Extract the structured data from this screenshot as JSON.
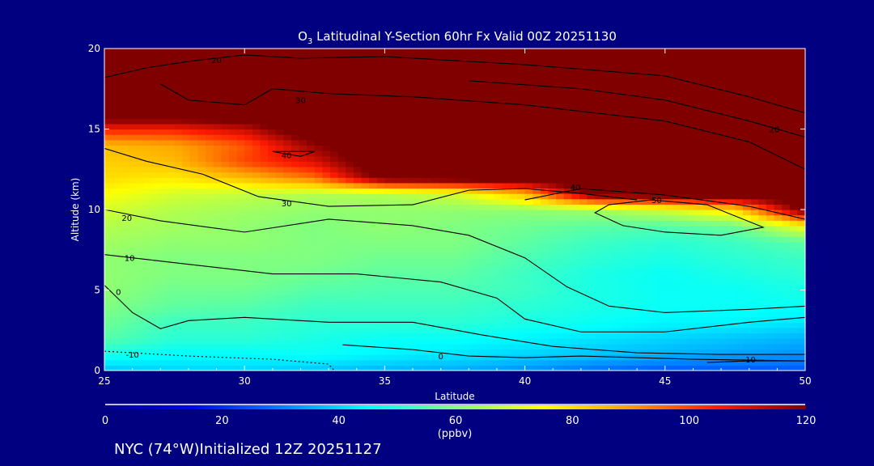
{
  "chart_data": {
    "type": "heatmap",
    "title_main": "O",
    "title_sub": "3",
    "title_rest": " Latitudinal Y-Section 60hr  Fx Valid 00Z 20251130",
    "xlabel": "Latitude",
    "ylabel": "Altitude (km)",
    "xlim": [
      25,
      50
    ],
    "ylim": [
      0,
      20
    ],
    "xticks": [
      "25",
      "30",
      "35",
      "40",
      "45",
      "50"
    ],
    "yticks": [
      "0",
      "5",
      "10",
      "15",
      "20"
    ],
    "colorbar": {
      "label": "(ppbv)",
      "range": [
        0,
        120
      ],
      "ticks": [
        "0",
        "20",
        "40",
        "60",
        "80",
        "100",
        "120"
      ],
      "stops": [
        [
          0,
          "#00008c"
        ],
        [
          15,
          "#0000ff"
        ],
        [
          30,
          "#0080ff"
        ],
        [
          45,
          "#00ffff"
        ],
        [
          60,
          "#80ff80"
        ],
        [
          75,
          "#ffff00"
        ],
        [
          90,
          "#ff9900"
        ],
        [
          105,
          "#ff1a00"
        ],
        [
          120,
          "#800000"
        ]
      ]
    },
    "footer": "NYC (74°W)Initialized 12Z 20251127",
    "grid_lat": [
      25,
      27.5,
      30,
      32.5,
      35,
      37.5,
      40,
      42.5,
      45,
      47.5,
      50
    ],
    "grid_alt": [
      0,
      1,
      2,
      3,
      4,
      5,
      6,
      7,
      8,
      9,
      10,
      11,
      12,
      13,
      14,
      15,
      16,
      17,
      18,
      19,
      20
    ],
    "values": [
      [
        38,
        40,
        40,
        38,
        36,
        35,
        32,
        28,
        25,
        25,
        25
      ],
      [
        48,
        45,
        45,
        46,
        44,
        42,
        40,
        38,
        36,
        34,
        32
      ],
      [
        55,
        50,
        50,
        48,
        46,
        46,
        44,
        42,
        40,
        38,
        36
      ],
      [
        58,
        52,
        52,
        50,
        50,
        50,
        48,
        46,
        44,
        44,
        42
      ],
      [
        60,
        56,
        55,
        52,
        52,
        52,
        50,
        48,
        46,
        46,
        46
      ],
      [
        62,
        58,
        58,
        55,
        54,
        54,
        52,
        48,
        46,
        46,
        48
      ],
      [
        62,
        60,
        60,
        58,
        56,
        56,
        52,
        48,
        46,
        48,
        50
      ],
      [
        62,
        60,
        60,
        60,
        58,
        58,
        54,
        50,
        48,
        50,
        52
      ],
      [
        64,
        62,
        62,
        60,
        60,
        60,
        56,
        52,
        50,
        52,
        56
      ],
      [
        66,
        64,
        62,
        60,
        62,
        60,
        58,
        56,
        55,
        58,
        75
      ],
      [
        70,
        66,
        64,
        62,
        62,
        62,
        62,
        64,
        70,
        80,
        125
      ],
      [
        75,
        70,
        68,
        66,
        66,
        70,
        85,
        125,
        128,
        130,
        130
      ],
      [
        80,
        78,
        85,
        95,
        125,
        128,
        130,
        130,
        130,
        130,
        130
      ],
      [
        82,
        85,
        100,
        110,
        130,
        130,
        130,
        130,
        130,
        130,
        130
      ],
      [
        85,
        88,
        98,
        118,
        130,
        130,
        130,
        130,
        130,
        130,
        130
      ],
      [
        105,
        105,
        112,
        130,
        130,
        130,
        130,
        130,
        130,
        130,
        130
      ],
      [
        130,
        130,
        130,
        130,
        130,
        130,
        130,
        130,
        130,
        130,
        130
      ],
      [
        130,
        130,
        130,
        130,
        130,
        130,
        130,
        130,
        130,
        130,
        130
      ],
      [
        130,
        130,
        130,
        130,
        130,
        130,
        130,
        130,
        130,
        130,
        130
      ],
      [
        130,
        130,
        130,
        130,
        130,
        130,
        130,
        130,
        130,
        130,
        130
      ],
      [
        130,
        130,
        130,
        130,
        130,
        130,
        130,
        130,
        130,
        130,
        130
      ]
    ],
    "contours": [
      {
        "label": "20",
        "label_at": [
          29,
          19.3
        ],
        "dashed": false,
        "points": [
          [
            25,
            18.2
          ],
          [
            26.5,
            18.8
          ],
          [
            28,
            19.2
          ],
          [
            30,
            19.6
          ],
          [
            32,
            19.4
          ],
          [
            35,
            19.5
          ],
          [
            40,
            19
          ],
          [
            45,
            18.3
          ],
          [
            48,
            17
          ],
          [
            50,
            16
          ]
        ]
      },
      {
        "label": "30",
        "label_at": [
          32,
          16.8
        ],
        "dashed": false,
        "points": [
          [
            27,
            17.8
          ],
          [
            28,
            16.8
          ],
          [
            30,
            16.5
          ],
          [
            31,
            17.5
          ],
          [
            33,
            17.2
          ],
          [
            36,
            17
          ],
          [
            40,
            16.5
          ],
          [
            45,
            15.5
          ],
          [
            48,
            14.2
          ],
          [
            50,
            12.5
          ]
        ]
      },
      {
        "label": "20",
        "label_at": [
          48.9,
          15
        ],
        "dashed": false,
        "points": [
          [
            38,
            18
          ],
          [
            42,
            17.5
          ],
          [
            45,
            16.8
          ],
          [
            48,
            15.5
          ],
          [
            50,
            14.5
          ]
        ]
      },
      {
        "label": "40",
        "label_at": [
          31.5,
          13.4
        ],
        "dashed": false,
        "points": [
          [
            31,
            13.6
          ],
          [
            32.5,
            13.6
          ],
          [
            32,
            13.3
          ],
          [
            31,
            13.6
          ]
        ]
      },
      {
        "label": "30",
        "label_at": [
          31.5,
          10.4
        ],
        "dashed": false,
        "points": [
          [
            25,
            13.8
          ],
          [
            26.5,
            13
          ],
          [
            28.5,
            12.2
          ],
          [
            30.5,
            10.8
          ],
          [
            33,
            10.2
          ],
          [
            36,
            10.3
          ],
          [
            38,
            11.2
          ],
          [
            40,
            11.3
          ],
          [
            42,
            11
          ],
          [
            44,
            10.6
          ]
        ]
      },
      {
        "label": "40",
        "label_at": [
          41.8,
          11.4
        ],
        "dashed": false,
        "points": [
          [
            40,
            10.6
          ],
          [
            42,
            11.3
          ],
          [
            45,
            10.9
          ],
          [
            48,
            10.2
          ],
          [
            50,
            9.4
          ]
        ]
      },
      {
        "label": "50",
        "label_at": [
          44.7,
          10.6
        ],
        "dashed": false,
        "points": [
          [
            43,
            10.3
          ],
          [
            42.5,
            9.8
          ],
          [
            43.5,
            9
          ],
          [
            45,
            8.6
          ],
          [
            47,
            8.4
          ],
          [
            48.5,
            8.9
          ],
          [
            46.5,
            10.3
          ],
          [
            44.5,
            10.6
          ],
          [
            43,
            10.3
          ]
        ]
      },
      {
        "label": "20",
        "label_at": [
          25.8,
          9.5
        ],
        "dashed": false,
        "points": [
          [
            25,
            10
          ],
          [
            27,
            9.3
          ],
          [
            30,
            8.6
          ],
          [
            33,
            9.4
          ],
          [
            36,
            9
          ],
          [
            38,
            8.4
          ],
          [
            40,
            7
          ],
          [
            41.5,
            5.2
          ],
          [
            43,
            4
          ],
          [
            45,
            3.6
          ],
          [
            48,
            3.8
          ],
          [
            50,
            4
          ]
        ]
      },
      {
        "label": "10",
        "label_at": [
          25.9,
          7
        ],
        "dashed": false,
        "points": [
          [
            25,
            7.2
          ],
          [
            28,
            6.6
          ],
          [
            31,
            6
          ],
          [
            34,
            6
          ],
          [
            37,
            5.5
          ],
          [
            39,
            4.5
          ],
          [
            40,
            3.2
          ],
          [
            42,
            2.4
          ],
          [
            45,
            2.4
          ],
          [
            48,
            3
          ],
          [
            50,
            3.3
          ]
        ]
      },
      {
        "label": "0",
        "label_at": [
          25.5,
          4.9
        ],
        "dashed": false,
        "points": [
          [
            25,
            5.3
          ],
          [
            26,
            3.6
          ],
          [
            27,
            2.6
          ],
          [
            28,
            3.1
          ],
          [
            30,
            3.3
          ],
          [
            33,
            3
          ],
          [
            36,
            3
          ],
          [
            38.5,
            2.2
          ],
          [
            41,
            1.5
          ],
          [
            44,
            1.1
          ],
          [
            47,
            1
          ],
          [
            50,
            1
          ]
        ]
      },
      {
        "label": "0",
        "label_at": [
          37,
          0.9
        ],
        "dashed": false,
        "points": [
          [
            33.5,
            1.6
          ],
          [
            36,
            1.3
          ],
          [
            38,
            0.9
          ],
          [
            40,
            0.8
          ],
          [
            42,
            0.9
          ],
          [
            44,
            0.8
          ],
          [
            46,
            0.7
          ],
          [
            50,
            0.6
          ]
        ]
      },
      {
        "label": "-10",
        "label_at": [
          26,
          1
        ],
        "dashed": true,
        "points": [
          [
            25,
            1.2
          ],
          [
            28,
            0.9
          ],
          [
            31,
            0.7
          ],
          [
            33,
            0.4
          ],
          [
            33.2,
            0
          ]
        ]
      },
      {
        "label": "-10",
        "label_at": [
          48,
          0.7
        ],
        "dashed": false,
        "points": [
          [
            46.5,
            0.5
          ],
          [
            48,
            0.6
          ],
          [
            50,
            0.6
          ]
        ]
      }
    ]
  }
}
